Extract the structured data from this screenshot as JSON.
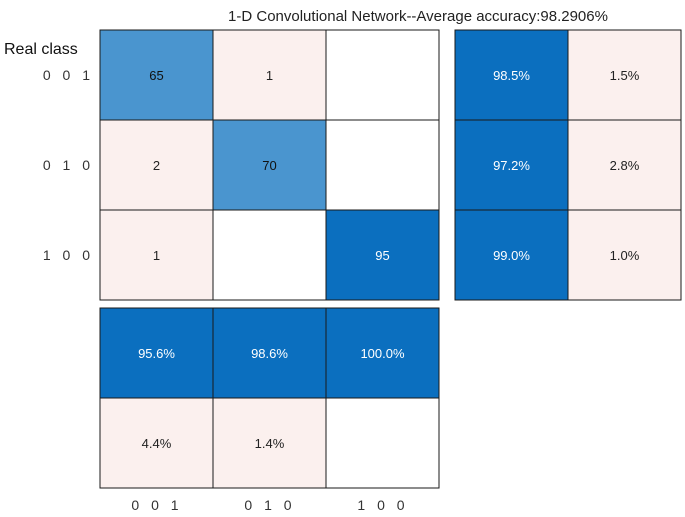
{
  "chart_data": {
    "type": "heatmap",
    "title": "1-D Convolutional Network--Average accuracy:98.2906%",
    "ylabel": "Real class",
    "xlabel": "",
    "classes": [
      "0 0 1",
      "0 1 0",
      "1 0 0"
    ],
    "confusion_matrix": [
      [
        65,
        1,
        null
      ],
      [
        2,
        70,
        null
      ],
      [
        1,
        null,
        95
      ]
    ],
    "row_summary": [
      [
        "98.5%",
        "1.5%"
      ],
      [
        "97.2%",
        "2.8%"
      ],
      [
        "99.0%",
        "1.0%"
      ]
    ],
    "column_summary": [
      [
        "95.6%",
        "98.6%",
        "100.0%"
      ],
      [
        "4.4%",
        "1.4%",
        null
      ]
    ]
  },
  "colors": {
    "dark_blue": "#0b6fbf",
    "mid_blue": "#4a95cf",
    "light_pink": "#fbf0ee",
    "empty": "#ffffff",
    "border": "#1a1a1a"
  }
}
